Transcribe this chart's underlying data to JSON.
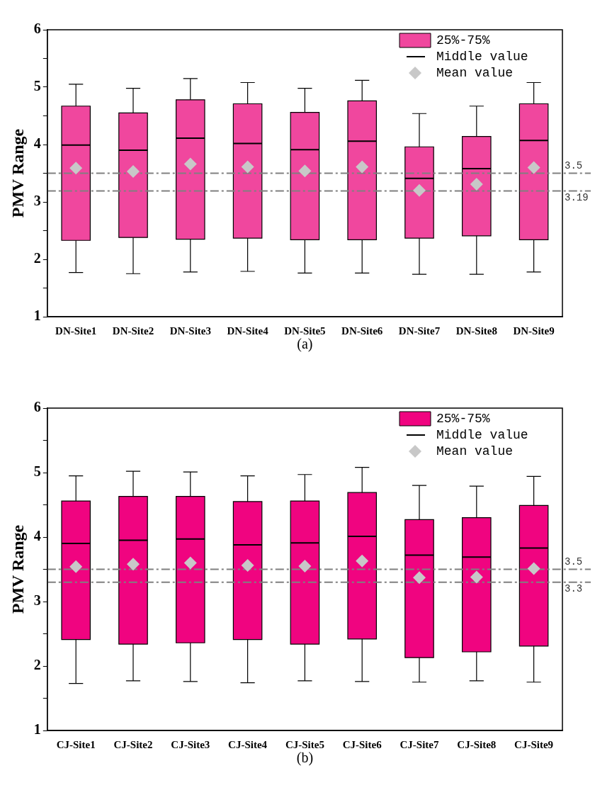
{
  "chart_data": [
    {
      "type": "box",
      "categories": [
        "DN-Site1",
        "DN-Site2",
        "DN-Site3",
        "DN-Site4",
        "DN-Site5",
        "DN-Site6",
        "DN-Site7",
        "DN-Site8",
        "DN-Site9"
      ],
      "ylabel": "PMV Range",
      "ylim": [
        1,
        6
      ],
      "yticks": [
        1,
        {
          "value": 1.5,
          "label": null
        },
        2,
        {
          "value": 2.5,
          "label": null
        },
        3,
        {
          "value": 3.5,
          "label": null
        },
        4,
        {
          "value": 4.5,
          "label": null
        },
        5,
        {
          "value": 5.5,
          "label": null
        },
        6
      ],
      "grid": false,
      "legend": "top right",
      "marker": "diamond",
      "series": [
        {
          "name": "25%-75%",
          "color": "#f0479e",
          "boxes": [
            {
              "low": 1.77,
              "q1": 2.33,
              "median": 3.99,
              "q3": 4.67,
              "high": 5.05
            },
            {
              "low": 1.75,
              "q1": 2.38,
              "median": 3.9,
              "q3": 4.55,
              "high": 4.98
            },
            {
              "low": 1.78,
              "q1": 2.35,
              "median": 4.11,
              "q3": 4.78,
              "high": 5.15
            },
            {
              "low": 1.79,
              "q1": 2.37,
              "median": 4.02,
              "q3": 4.71,
              "high": 5.08
            },
            {
              "low": 1.76,
              "q1": 2.34,
              "median": 3.91,
              "q3": 4.56,
              "high": 4.98
            },
            {
              "low": 1.76,
              "q1": 2.34,
              "median": 4.06,
              "q3": 4.76,
              "high": 5.12
            },
            {
              "low": 1.74,
              "q1": 2.37,
              "median": 3.41,
              "q3": 3.96,
              "high": 4.54
            },
            {
              "low": 1.74,
              "q1": 2.41,
              "median": 3.58,
              "q3": 4.14,
              "high": 4.67
            },
            {
              "low": 1.78,
              "q1": 2.34,
              "median": 4.07,
              "q3": 4.71,
              "high": 5.08
            }
          ]
        },
        {
          "type": "scatter",
          "name": "Mean value",
          "color": "#c8c8c8",
          "x": [
            "DN-Site1",
            "DN-Site2",
            "DN-Site3",
            "DN-Site4",
            "DN-Site5",
            "DN-Site6",
            "DN-Site7",
            "DN-Site8",
            "DN-Site9"
          ],
          "values": [
            3.59,
            3.53,
            3.66,
            3.61,
            3.54,
            3.61,
            3.2,
            3.31,
            3.6
          ]
        }
      ],
      "ref_lines": [
        {
          "axis": "y",
          "value": 3.5,
          "label": "3.5",
          "color": "#808080",
          "line_style": "dashed"
        },
        {
          "axis": "y",
          "value": 3.19,
          "label": "3.19",
          "color": "#808080",
          "line_style": "dashed"
        }
      ],
      "annotations": [
        "Middle value",
        "(a)"
      ]
    },
    {
      "type": "box",
      "categories": [
        "CJ-Site1",
        "CJ-Site2",
        "CJ-Site3",
        "CJ-Site4",
        "CJ-Site5",
        "CJ-Site6",
        "CJ-Site7",
        "CJ-Site8",
        "CJ-Site9"
      ],
      "ylabel": "PMV Range",
      "ylim": [
        1,
        6
      ],
      "yticks": [
        1,
        {
          "value": 1.5,
          "label": null
        },
        2,
        {
          "value": 2.5,
          "label": null
        },
        3,
        {
          "value": 3.5,
          "label": null
        },
        4,
        {
          "value": 4.5,
          "label": null
        },
        5,
        {
          "value": 5.5,
          "label": null
        },
        6
      ],
      "grid": false,
      "legend": "top right",
      "marker": "diamond",
      "series": [
        {
          "name": "25%-75%",
          "color": "#f00480",
          "boxes": [
            {
              "low": 1.73,
              "q1": 2.41,
              "median": 3.9,
              "q3": 4.56,
              "high": 4.95
            },
            {
              "low": 1.77,
              "q1": 2.34,
              "median": 3.95,
              "q3": 4.63,
              "high": 5.02
            },
            {
              "low": 1.76,
              "q1": 2.36,
              "median": 3.97,
              "q3": 4.63,
              "high": 5.01
            },
            {
              "low": 1.74,
              "q1": 2.41,
              "median": 3.88,
              "q3": 4.55,
              "high": 4.95
            },
            {
              "low": 1.77,
              "q1": 2.34,
              "median": 3.91,
              "q3": 4.56,
              "high": 4.97
            },
            {
              "low": 1.76,
              "q1": 2.42,
              "median": 4.01,
              "q3": 4.69,
              "high": 5.08
            },
            {
              "low": 1.75,
              "q1": 2.13,
              "median": 3.72,
              "q3": 4.27,
              "high": 4.8
            },
            {
              "low": 1.77,
              "q1": 2.22,
              "median": 3.69,
              "q3": 4.3,
              "high": 4.79
            },
            {
              "low": 1.75,
              "q1": 2.31,
              "median": 3.83,
              "q3": 4.49,
              "high": 4.94
            }
          ]
        },
        {
          "type": "scatter",
          "name": "Mean value",
          "color": "#c8c8c8",
          "x": [
            "CJ-Site1",
            "CJ-Site2",
            "CJ-Site3",
            "CJ-Site4",
            "CJ-Site5",
            "CJ-Site6",
            "CJ-Site7",
            "CJ-Site8",
            "CJ-Site9"
          ],
          "values": [
            3.54,
            3.58,
            3.6,
            3.56,
            3.55,
            3.63,
            3.37,
            3.38,
            3.51
          ]
        }
      ],
      "ref_lines": [
        {
          "axis": "y",
          "value": 3.5,
          "label": "3.5",
          "color": "#808080",
          "line_style": "dashed"
        },
        {
          "axis": "y",
          "value": 3.3,
          "label": "3.3",
          "color": "#808080",
          "line_style": "dashed"
        }
      ],
      "annotations": [
        "Middle value",
        "(b)"
      ]
    }
  ]
}
